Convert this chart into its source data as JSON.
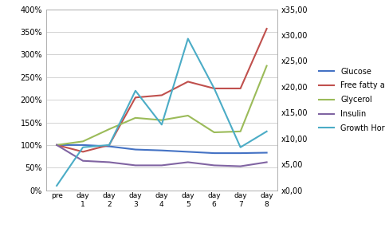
{
  "x_labels": [
    "pre",
    "day\n1",
    "day\n2",
    "day\n3",
    "day\n4",
    "day\n5",
    "day\n6",
    "day\n7",
    "day\n8"
  ],
  "x_positions": [
    0,
    1,
    2,
    3,
    4,
    5,
    6,
    7,
    8
  ],
  "series": {
    "Glucose": {
      "color": "#4472C4",
      "values": [
        100,
        100,
        97,
        90,
        88,
        85,
        82,
        82,
        83
      ]
    },
    "Free fatty acids": {
      "color": "#C0504D",
      "values": [
        100,
        85,
        100,
        205,
        210,
        240,
        225,
        225,
        357
      ]
    },
    "Glycerol": {
      "color": "#9BBB59",
      "values": [
        100,
        108,
        135,
        160,
        155,
        165,
        128,
        130,
        275
      ]
    },
    "Insulin": {
      "color": "#8064A2",
      "values": [
        100,
        65,
        62,
        55,
        55,
        62,
        55,
        53,
        62
      ]
    },
    "Growth Hormone": {
      "color": "#4BACC6",
      "values": [
        10,
        95,
        100,
        220,
        145,
        335,
        225,
        95,
        130
      ]
    }
  },
  "ylim_left": [
    0,
    400
  ],
  "ylim_right": [
    0,
    35
  ],
  "yticks_left": [
    0,
    50,
    100,
    150,
    200,
    250,
    300,
    350,
    400
  ],
  "yticks_right": [
    0,
    5,
    10,
    15,
    20,
    25,
    30,
    35
  ],
  "left_tick_labels": [
    "0%",
    "50%",
    "100%",
    "150%",
    "200%",
    "250%",
    "300%",
    "350%",
    "400%"
  ],
  "right_tick_labels": [
    "x0,00",
    "x5,00",
    "x10,00",
    "x15,00",
    "x20,00",
    "x25,00",
    "x30,00",
    "x35,00"
  ],
  "background_color": "#ffffff",
  "grid_color": "#c0c0c0",
  "legend_order": [
    "Glucose",
    "Free fatty acids",
    "Glycerol",
    "Insulin",
    "Growth Hormone"
  ]
}
